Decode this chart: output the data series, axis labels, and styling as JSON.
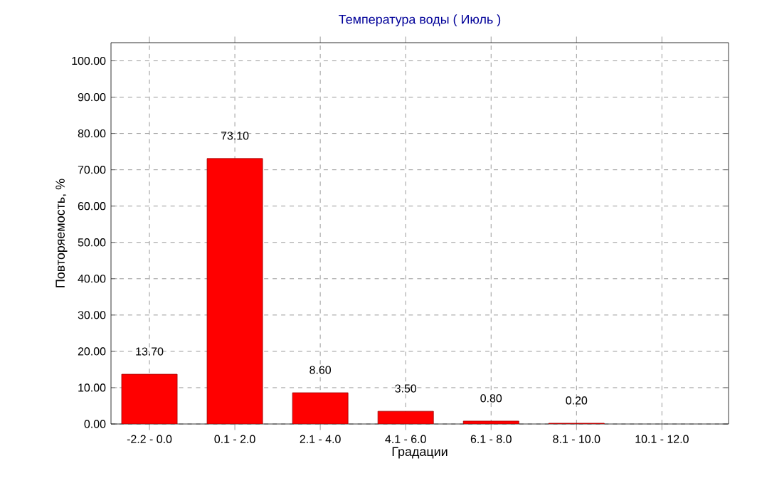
{
  "chart_data": {
    "type": "bar",
    "title": "Температура воды    ( Июль )",
    "xlabel": "Градации",
    "ylabel": "Повторяемость, %",
    "categories": [
      "-2.2 - 0.0",
      "0.1 - 2.0",
      "2.1 - 4.0",
      "4.1 - 6.0",
      "6.1 - 8.0",
      "8.1 - 10.0",
      "10.1 - 12.0"
    ],
    "values": [
      13.7,
      73.1,
      8.6,
      3.5,
      0.8,
      0.2,
      null
    ],
    "value_labels": [
      "13.70",
      "73.10",
      "8.60",
      "3.50",
      "0.80",
      "0.20",
      null
    ],
    "color": "#ff0000",
    "ylim": [
      0,
      105
    ],
    "yticks": [
      {
        "value": 0,
        "label": "0.00"
      },
      {
        "value": 10,
        "label": "10.00"
      },
      {
        "value": 20,
        "label": "20.00"
      },
      {
        "value": 30,
        "label": "30.00"
      },
      {
        "value": 40,
        "label": "40.00"
      },
      {
        "value": 50,
        "label": "50.00"
      },
      {
        "value": 60,
        "label": "60.00"
      },
      {
        "value": 70,
        "label": "70.00"
      },
      {
        "value": 80,
        "label": "80.00"
      },
      {
        "value": 90,
        "label": "90.00"
      },
      {
        "value": 100,
        "label": "100.00"
      }
    ],
    "grid": true
  }
}
